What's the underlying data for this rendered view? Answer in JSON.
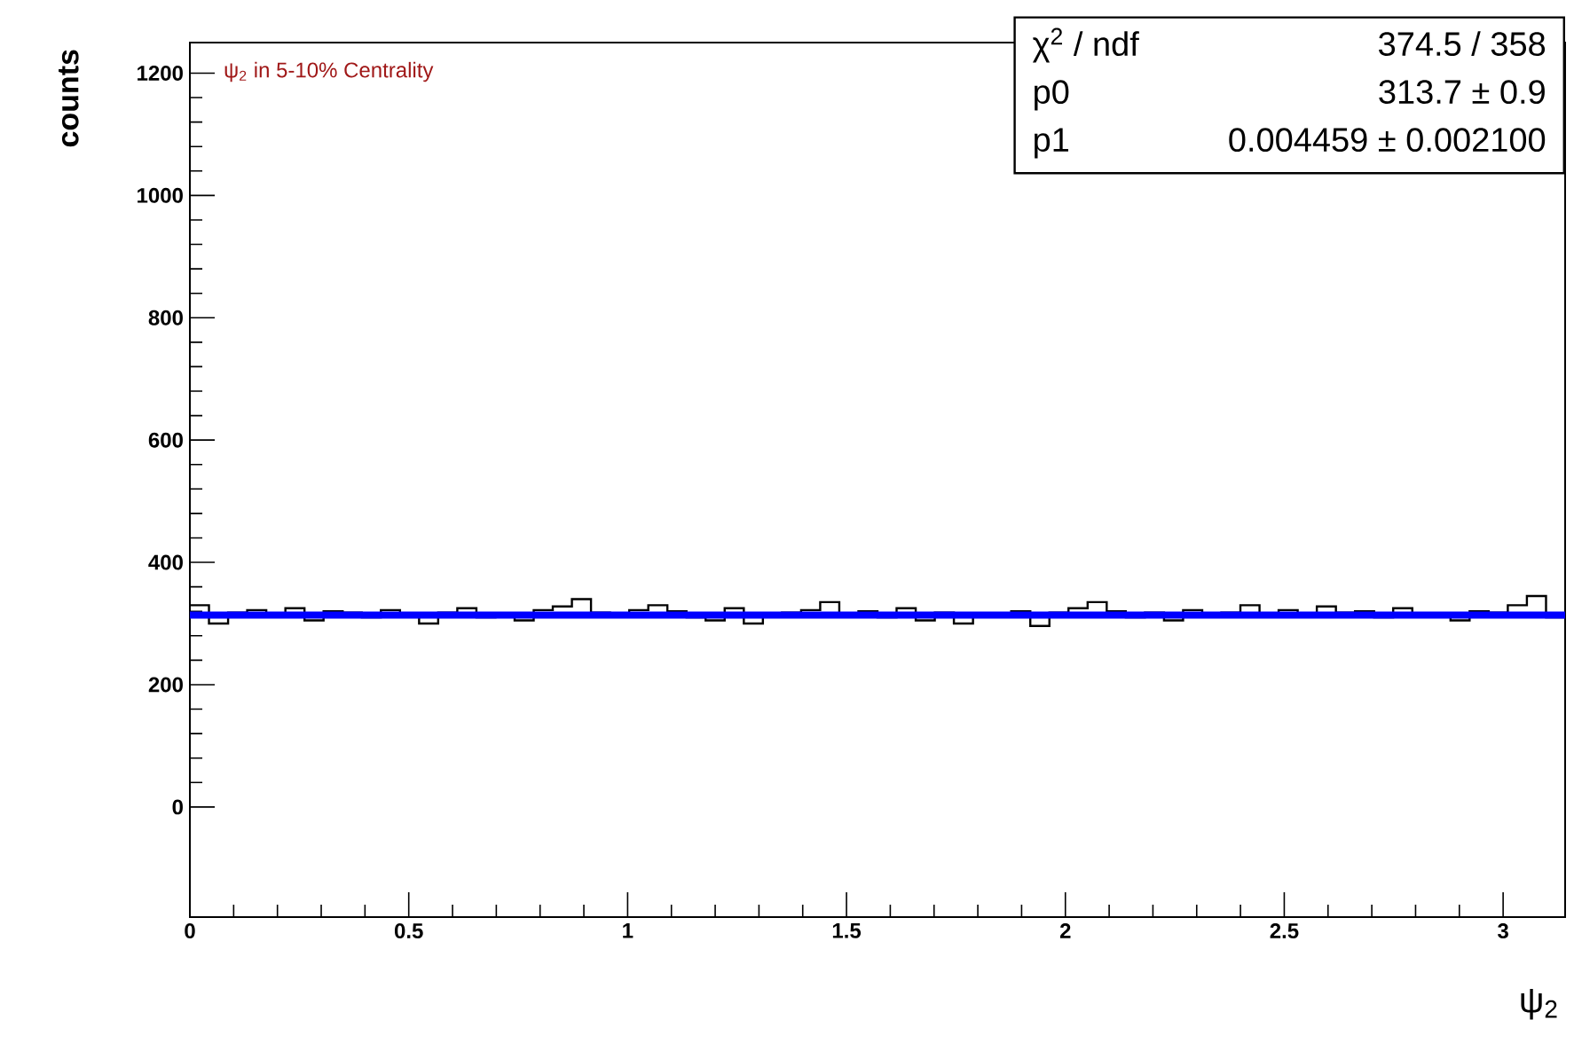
{
  "chart_data": {
    "type": "histogram",
    "title": "ψ$_{2}$ in 5-10% Centrality",
    "xlabel": "ψ$_{2}$",
    "ylabel": "counts",
    "annotations": [
      "χ$^{2}$ / ndf",
      "374.5 / 358",
      "p0",
      "313.7 ± 0.9",
      "p1",
      "0.004459 ± 0.002100"
    ],
    "bins": [
      0,
      0.0436,
      0.0873,
      0.1309,
      0.1745,
      0.2182,
      0.2618,
      0.3054,
      0.3491,
      0.3927,
      0.4363,
      0.48,
      0.5236,
      0.5672,
      0.6109,
      0.6545,
      0.6981,
      0.7418,
      0.7854,
      0.829,
      0.8727,
      0.9163,
      0.9599,
      1.0036,
      1.0472,
      1.0908,
      1.1345,
      1.1781,
      1.2217,
      1.2654,
      1.309,
      1.3526,
      1.3963,
      1.4399,
      1.4835,
      1.5272,
      1.5708,
      1.6144,
      1.6581,
      1.7017,
      1.7453,
      1.789,
      1.8326,
      1.8762,
      1.9199,
      1.9635,
      2.0071,
      2.0508,
      2.0944,
      2.138,
      2.1817,
      2.2253,
      2.2689,
      2.3126,
      2.3562,
      2.3998,
      2.4435,
      2.4871,
      2.5307,
      2.5744,
      2.618,
      2.6616,
      2.7053,
      2.7489,
      2.7925,
      2.8362,
      2.8798,
      2.9234,
      2.9671,
      3.0107,
      3.0543,
      3.098,
      3.1416
    ],
    "series": [
      {
        "color": "#000000",
        "values": [
          330,
          300,
          318,
          322,
          312,
          325,
          305,
          320,
          318,
          310,
          322,
          312,
          300,
          318,
          325,
          310,
          315,
          305,
          322,
          328,
          340,
          318,
          312,
          322,
          330,
          320,
          310,
          305,
          325,
          300,
          312,
          318,
          322,
          335,
          315,
          320,
          310,
          325,
          305,
          318,
          300,
          315,
          312,
          320,
          296,
          318,
          325,
          335,
          320,
          310,
          318,
          305,
          322,
          312,
          318,
          330,
          315,
          322,
          312,
          328,
          318,
          320,
          310,
          325,
          315,
          312,
          305,
          320,
          318,
          330,
          345,
          310
        ]
      },
      {
        "type": "line",
        "color": "#0000ff",
        "x": [
          0,
          3.1416
        ],
        "values": [
          313.7,
          313.7
        ]
      }
    ],
    "xlim": [
      0,
      3.1416
    ],
    "ylim": [
      -180,
      1250
    ],
    "xticks": [
      0,
      0.5,
      1,
      1.5,
      2,
      2.5,
      3
    ],
    "yticks": [
      0,
      200,
      400,
      600,
      800,
      1000,
      1200
    ]
  }
}
